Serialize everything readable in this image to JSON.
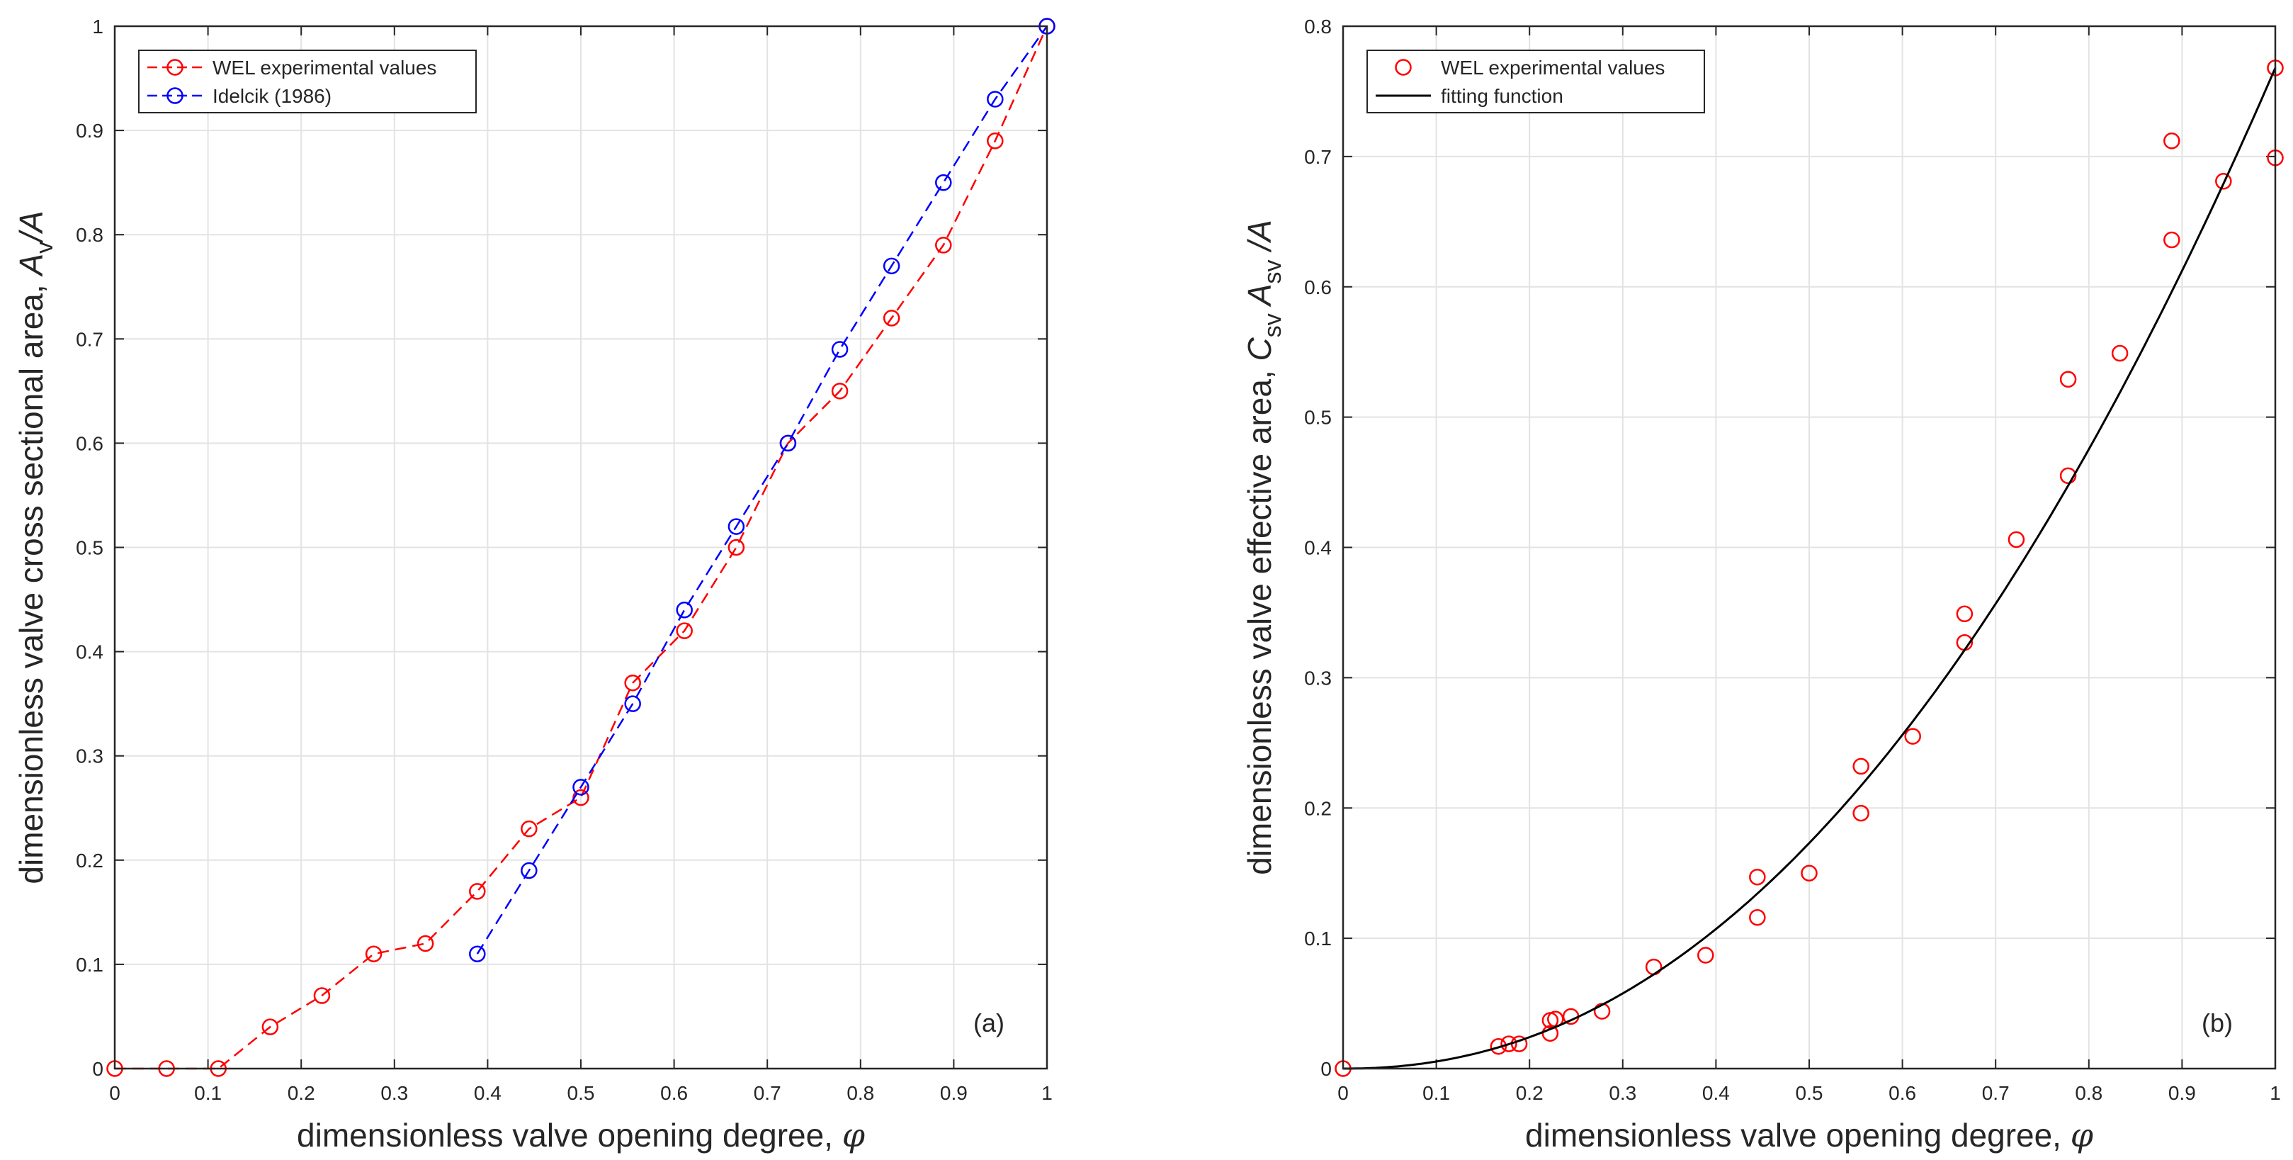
{
  "chart_data": [
    {
      "type": "line",
      "panel_label": "(a)",
      "xlabel": "dimensionless valve opening degree, ",
      "xlabel_symbol": "φ",
      "ylabel_parts": [
        "dimensionless valve cross sectional area, ",
        "A",
        "v",
        "/A"
      ],
      "xlim": [
        0,
        1
      ],
      "ylim": [
        0,
        1
      ],
      "grid": true,
      "xticks": [
        "0",
        "0.1",
        "0.2",
        "0.3",
        "0.4",
        "0.5",
        "0.6",
        "0.7",
        "0.8",
        "0.9",
        "1"
      ],
      "yticks": [
        "0",
        "0.1",
        "0.2",
        "0.3",
        "0.4",
        "0.5",
        "0.6",
        "0.7",
        "0.8",
        "0.9",
        "1"
      ],
      "legend_position": "top-left",
      "series": [
        {
          "name": "WEL experimental values",
          "color": "#ff0000",
          "style": "dashed-circle",
          "x": [
            0,
            0.0556,
            0.1111,
            0.1667,
            0.2222,
            0.2778,
            0.3333,
            0.3889,
            0.4444,
            0.5,
            0.5556,
            0.6111,
            0.6667,
            0.7222,
            0.7778,
            0.8333,
            0.8889,
            0.9444,
            1
          ],
          "y": [
            0,
            0,
            0,
            0.04,
            0.07,
            0.11,
            0.12,
            0.17,
            0.23,
            0.26,
            0.37,
            0.42,
            0.5,
            0.6,
            0.65,
            0.72,
            0.79,
            0.89,
            1
          ]
        },
        {
          "name": "Idelcik (1986)",
          "color": "#0000ff",
          "style": "dashed-circle",
          "x": [
            0.3889,
            0.4444,
            0.5,
            0.5556,
            0.6111,
            0.6667,
            0.7222,
            0.7778,
            0.8333,
            0.8889,
            0.9444,
            1
          ],
          "y": [
            0.11,
            0.19,
            0.27,
            0.35,
            0.44,
            0.52,
            0.6,
            0.69,
            0.77,
            0.85,
            0.93,
            1
          ]
        }
      ]
    },
    {
      "type": "scatter",
      "panel_label": "(b)",
      "xlabel": "dimensionless valve opening degree, ",
      "xlabel_symbol": "φ",
      "ylabel_parts": [
        "dimensionless valve effective area, ",
        "C",
        "sv",
        " A",
        "sv",
        " /A"
      ],
      "xlim": [
        0,
        1
      ],
      "ylim": [
        0,
        0.8
      ],
      "grid": true,
      "xticks": [
        "0",
        "0.1",
        "0.2",
        "0.3",
        "0.4",
        "0.5",
        "0.6",
        "0.7",
        "0.8",
        "0.9",
        "1"
      ],
      "yticks": [
        "0",
        "0.1",
        "0.2",
        "0.3",
        "0.4",
        "0.5",
        "0.6",
        "0.7",
        "0.8"
      ],
      "legend_position": "top-left",
      "series": [
        {
          "name": "WEL experimental values",
          "color": "#ff0000",
          "style": "circle",
          "x": [
            0,
            0.1667,
            0.1778,
            0.1889,
            0.2222,
            0.2222,
            0.2278,
            0.2444,
            0.2778,
            0.3333,
            0.3889,
            0.4444,
            0.4444,
            0.5,
            0.5556,
            0.5556,
            0.6111,
            0.6667,
            0.6667,
            0.7222,
            0.7778,
            0.7778,
            0.8333,
            0.8889,
            0.8889,
            0.9444,
            1,
            1
          ],
          "y": [
            0,
            0.017,
            0.019,
            0.019,
            0.027,
            0.037,
            0.038,
            0.04,
            0.044,
            0.078,
            0.087,
            0.116,
            0.147,
            0.15,
            0.196,
            0.232,
            0.255,
            0.327,
            0.349,
            0.406,
            0.455,
            0.529,
            0.549,
            0.636,
            0.712,
            0.681,
            0.699,
            0.768
          ]
        },
        {
          "name": "fitting function",
          "color": "#000000",
          "style": "solid-line",
          "function": "0.768 * x^2.15",
          "coeff": 0.768,
          "exponent": 2.15
        }
      ]
    }
  ]
}
